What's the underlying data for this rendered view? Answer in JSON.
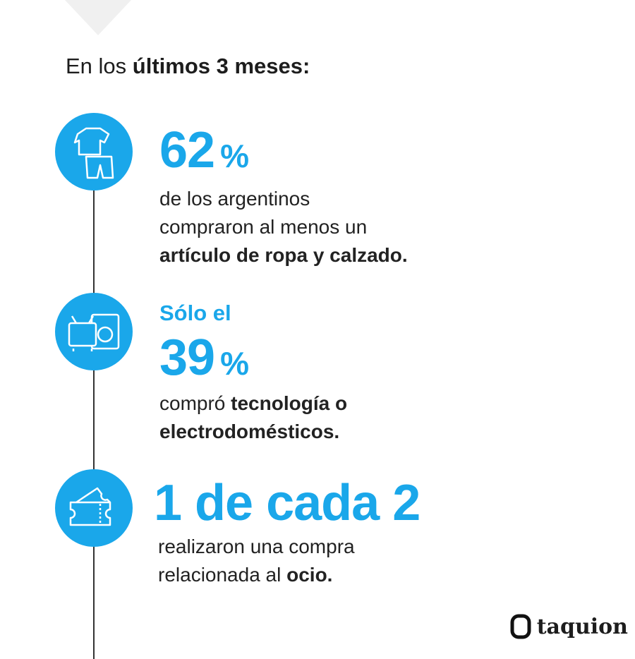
{
  "heading": {
    "lead": "En los",
    "bold": "últimos 3 meses:"
  },
  "items": [
    {
      "stat": "62",
      "unit": "%",
      "lines": [
        [
          {
            "text": "de los argentinos"
          }
        ],
        [
          {
            "text": "compraron al menos un"
          }
        ],
        [
          {
            "text": "artículo de ropa y calzado.",
            "bold": true
          }
        ]
      ]
    },
    {
      "pre": "Sólo el",
      "stat": "39",
      "unit": "%",
      "lines": [
        [
          {
            "text": "compró"
          },
          {
            "text": "tecnología o",
            "bold": true
          }
        ],
        [
          {
            "text": "electrodomésticos.",
            "bold": true
          }
        ]
      ]
    },
    {
      "stat": "1 de cada 2",
      "lines": [
        [
          {
            "text": "realizaron una compra"
          }
        ],
        [
          {
            "text": "relacionada al"
          },
          {
            "text": "ocio.",
            "bold": true
          }
        ]
      ]
    }
  ],
  "logo": "taquion"
}
